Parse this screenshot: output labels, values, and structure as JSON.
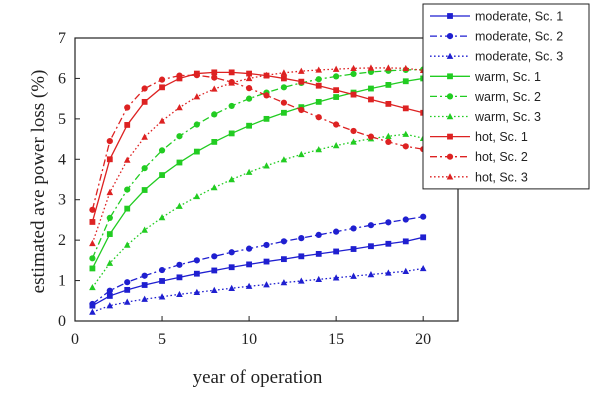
{
  "chart_data": {
    "type": "line",
    "xlabel": "year of operation",
    "ylabel": "estimated ave power loss (%)",
    "xlim": [
      0,
      22
    ],
    "ylim": [
      0,
      7
    ],
    "xticks": [
      0,
      5,
      10,
      15,
      20
    ],
    "yticks": [
      0,
      1,
      2,
      3,
      4,
      5,
      6,
      7
    ],
    "legend_position": "right, outside plot area",
    "x": [
      1,
      2,
      3,
      4,
      5,
      6,
      7,
      8,
      9,
      10,
      11,
      12,
      13,
      14,
      15,
      16,
      17,
      18,
      19,
      20
    ],
    "series": [
      {
        "name": "moderate, Sc. 1",
        "color": "#1f1fd0",
        "line_style": "solid",
        "marker": "square",
        "values": [
          0.38,
          0.62,
          0.77,
          0.89,
          0.99,
          1.08,
          1.17,
          1.25,
          1.33,
          1.4,
          1.47,
          1.53,
          1.6,
          1.66,
          1.72,
          1.78,
          1.85,
          1.91,
          1.97,
          2.07
        ]
      },
      {
        "name": "moderate, Sc. 2",
        "color": "#1f1fd0",
        "line_style": "dashdot",
        "marker": "circle",
        "values": [
          0.42,
          0.75,
          0.96,
          1.12,
          1.26,
          1.39,
          1.5,
          1.6,
          1.7,
          1.79,
          1.88,
          1.97,
          2.05,
          2.13,
          2.21,
          2.29,
          2.37,
          2.44,
          2.51,
          2.58
        ]
      },
      {
        "name": "moderate, Sc. 3",
        "color": "#1f1fd0",
        "line_style": "dotted",
        "marker": "triangle",
        "values": [
          0.22,
          0.38,
          0.47,
          0.54,
          0.6,
          0.66,
          0.71,
          0.76,
          0.81,
          0.86,
          0.9,
          0.95,
          0.99,
          1.03,
          1.07,
          1.11,
          1.15,
          1.19,
          1.23,
          1.3
        ]
      },
      {
        "name": "warm, Sc. 1",
        "color": "#22cc22",
        "line_style": "solid",
        "marker": "square",
        "values": [
          1.3,
          2.15,
          2.78,
          3.24,
          3.61,
          3.92,
          4.19,
          4.43,
          4.64,
          4.83,
          5.0,
          5.15,
          5.29,
          5.42,
          5.54,
          5.65,
          5.75,
          5.84,
          5.93,
          6.0
        ]
      },
      {
        "name": "warm, Sc. 2",
        "color": "#22cc22",
        "line_style": "dashdot",
        "marker": "circle",
        "values": [
          1.55,
          2.55,
          3.25,
          3.78,
          4.22,
          4.57,
          4.86,
          5.11,
          5.32,
          5.5,
          5.65,
          5.78,
          5.89,
          5.98,
          6.05,
          6.11,
          6.16,
          6.19,
          6.21,
          6.22
        ]
      },
      {
        "name": "warm, Sc. 3",
        "color": "#22cc22",
        "line_style": "dotted",
        "marker": "triangle",
        "values": [
          0.83,
          1.43,
          1.88,
          2.25,
          2.56,
          2.84,
          3.08,
          3.3,
          3.5,
          3.68,
          3.84,
          3.99,
          4.12,
          4.24,
          4.34,
          4.43,
          4.51,
          4.57,
          4.62,
          4.52
        ]
      },
      {
        "name": "hot, Sc. 1",
        "color": "#dd2222",
        "line_style": "solid",
        "marker": "square",
        "values": [
          2.45,
          4.0,
          4.85,
          5.42,
          5.78,
          6.0,
          6.12,
          6.15,
          6.15,
          6.12,
          6.07,
          6.0,
          5.92,
          5.82,
          5.71,
          5.6,
          5.48,
          5.37,
          5.26,
          5.15
        ]
      },
      {
        "name": "hot, Sc. 2",
        "color": "#dd2222",
        "line_style": "dashdot",
        "marker": "circle",
        "values": [
          2.75,
          4.45,
          5.28,
          5.75,
          5.97,
          6.07,
          6.08,
          6.02,
          5.91,
          5.76,
          5.58,
          5.4,
          5.22,
          5.04,
          4.86,
          4.7,
          4.56,
          4.43,
          4.32,
          4.25
        ]
      },
      {
        "name": "hot, Sc. 3",
        "color": "#dd2222",
        "line_style": "dotted",
        "marker": "triangle",
        "values": [
          1.92,
          3.18,
          3.98,
          4.55,
          4.95,
          5.28,
          5.55,
          5.74,
          5.89,
          6.0,
          6.08,
          6.14,
          6.18,
          6.21,
          6.23,
          6.25,
          6.26,
          6.26,
          6.25,
          6.2
        ]
      }
    ]
  }
}
